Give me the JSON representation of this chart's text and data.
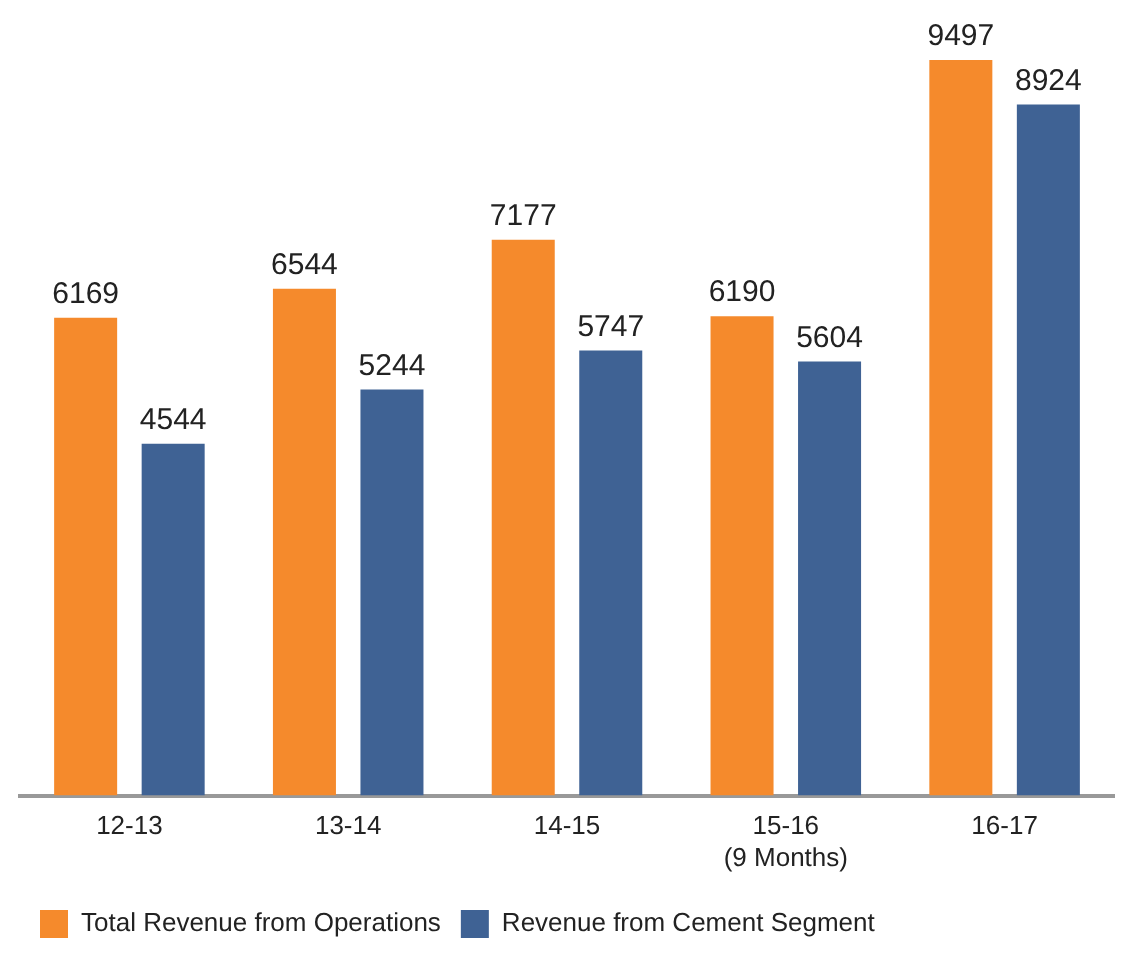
{
  "chart_data": {
    "type": "bar",
    "categories": [
      "12-13",
      "13-14",
      "14-15",
      "15-16\n(9 Months)",
      "16-17"
    ],
    "series": [
      {
        "name": "Total Revenue from Operations",
        "color": "#f58a2c",
        "values": [
          6169,
          6544,
          7177,
          6190,
          9497
        ]
      },
      {
        "name": "Revenue from Cement Segment",
        "color": "#3f6294",
        "values": [
          4544,
          5244,
          5747,
          5604,
          8924
        ]
      }
    ],
    "data_labels": true,
    "grid": false,
    "legend": "bottom left"
  }
}
